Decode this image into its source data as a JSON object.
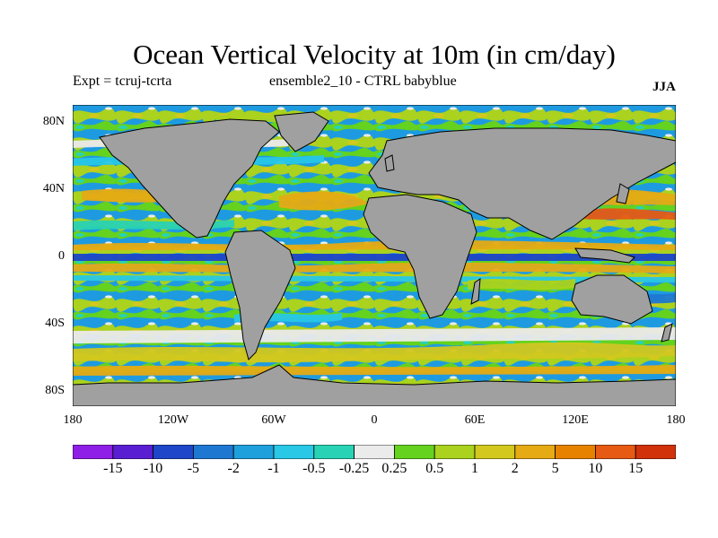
{
  "title": "Ocean Vertical Velocity at 10m (in cm/day)",
  "experiment": "Expt = tcruj-tcrta",
  "ensemble": "ensemble2_10 - CTRL babyblue",
  "season": "JJA",
  "lat_labels": [
    "80N",
    "40N",
    "0",
    "40S",
    "80S"
  ],
  "lon_labels": [
    "180",
    "120W",
    "60W",
    "0",
    "60E",
    "120E",
    "180"
  ],
  "colorbar": {
    "labels": [
      "-15",
      "-10",
      "-5",
      "-2",
      "-1",
      "-0.5",
      "-0.25",
      "0.25",
      "0.5",
      "1",
      "2",
      "5",
      "10",
      "15"
    ],
    "colors": [
      "#8f1ee6",
      "#5a1ed2",
      "#1e46c8",
      "#1e78d2",
      "#1ea0dc",
      "#28c8e6",
      "#28d2b4",
      "#ebebeb",
      "#64d21e",
      "#aad21e",
      "#d2c81e",
      "#e6aa14",
      "#e68200",
      "#e65a14",
      "#d2320a"
    ]
  },
  "map": {
    "land_color": "#a0a0a0"
  }
}
